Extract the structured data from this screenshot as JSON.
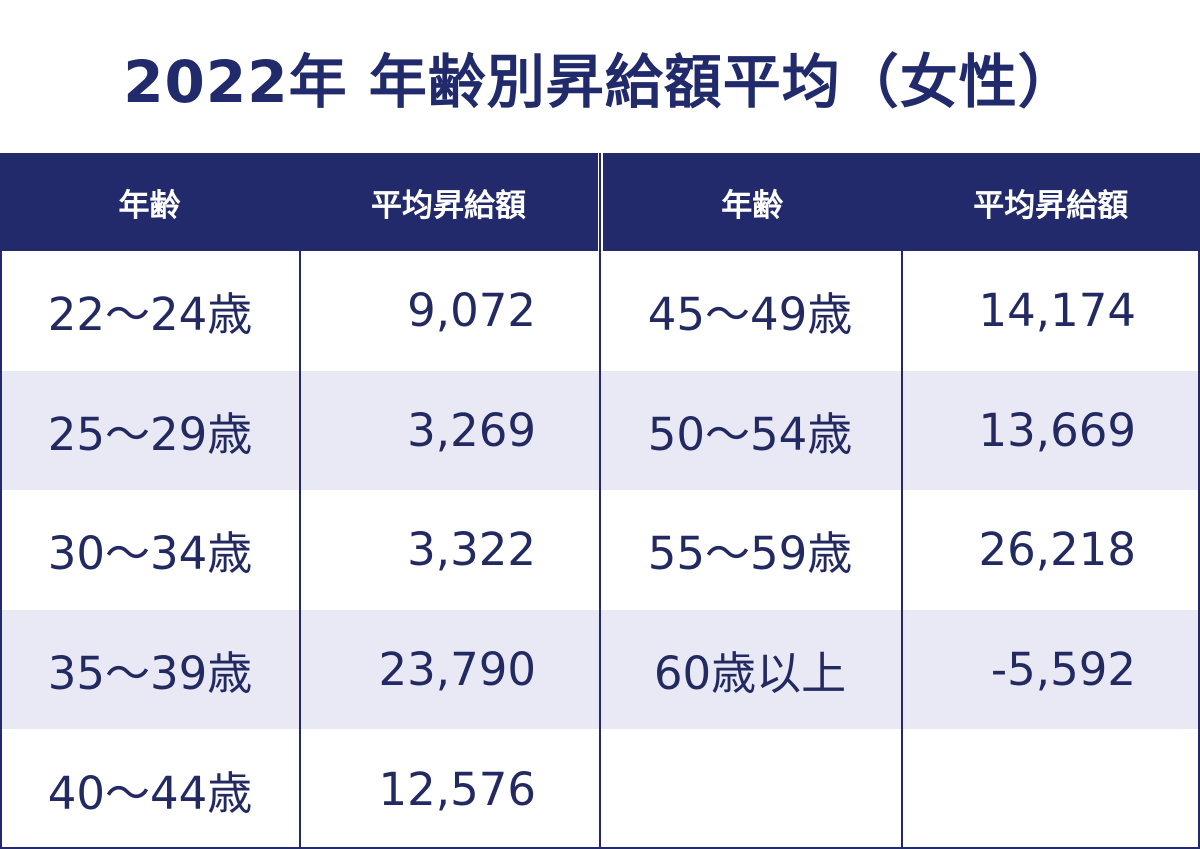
{
  "title": "2022年 年齢別昇給額平均（女性）",
  "colors": {
    "header_bg": "#222a6b",
    "title_text": "#212a6b",
    "body_text": "#232a62",
    "shade_row": "#e8e9f5"
  },
  "table": {
    "left": {
      "headers": [
        "年齢",
        "平均昇給額"
      ],
      "rows": [
        {
          "age": "22〜24歳",
          "value": "9,072"
        },
        {
          "age": "25〜29歳",
          "value": "3,269"
        },
        {
          "age": "30〜34歳",
          "value": "3,322"
        },
        {
          "age": "35〜39歳",
          "value": "23,790"
        },
        {
          "age": "40〜44歳",
          "value": "12,576"
        }
      ]
    },
    "right": {
      "headers": [
        "年齢",
        "平均昇給額"
      ],
      "rows": [
        {
          "age": "45〜49歳",
          "value": "14,174"
        },
        {
          "age": "50〜54歳",
          "value": "13,669"
        },
        {
          "age": "55〜59歳",
          "value": "26,218"
        },
        {
          "age": "60歳以上",
          "value": "-5,592"
        },
        {
          "age": "",
          "value": ""
        }
      ]
    }
  }
}
